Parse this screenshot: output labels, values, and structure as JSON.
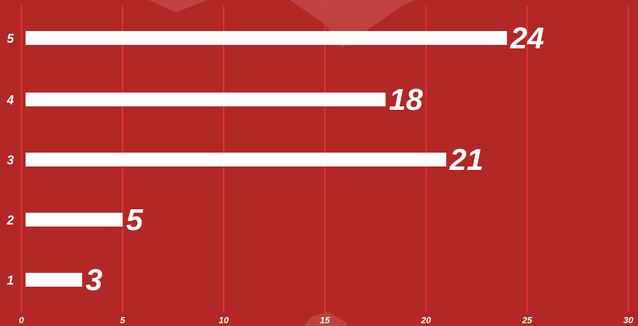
{
  "colors": {
    "background": "#b22826",
    "bar": "#ffffff",
    "grid": "#e33530",
    "decor": "#c85a55",
    "text": "#ffffff"
  },
  "chart_data": {
    "type": "bar",
    "orientation": "horizontal",
    "categories": [
      "1",
      "2",
      "3",
      "4",
      "5"
    ],
    "values": [
      3,
      5,
      21,
      18,
      24
    ],
    "title": "",
    "xlabel": "",
    "ylabel": "",
    "xlim": [
      0,
      30
    ],
    "x_ticks": [
      0,
      5,
      10,
      15,
      20,
      25,
      30
    ],
    "grid": "vertical",
    "legend": "none",
    "data_labels": true
  }
}
